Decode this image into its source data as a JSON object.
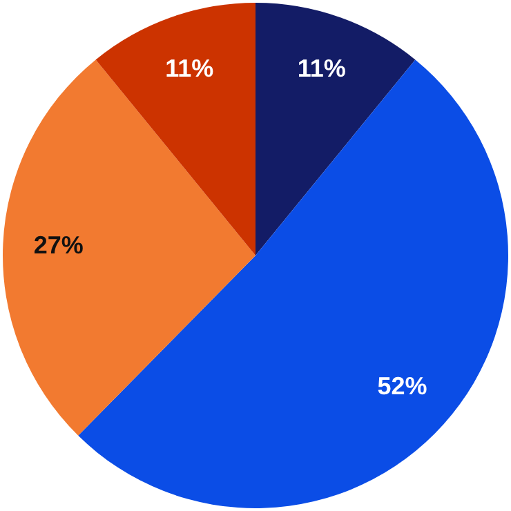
{
  "chart_data": {
    "type": "pie",
    "categories": [
      null,
      null,
      null,
      null
    ],
    "values": [
      11,
      52,
      27,
      11
    ],
    "value_labels": [
      "11%",
      "52%",
      "27%",
      "11%"
    ],
    "colors": [
      "#131c66",
      "#0b4de6",
      "#f27a30",
      "#cc3300"
    ],
    "legend": false
  }
}
